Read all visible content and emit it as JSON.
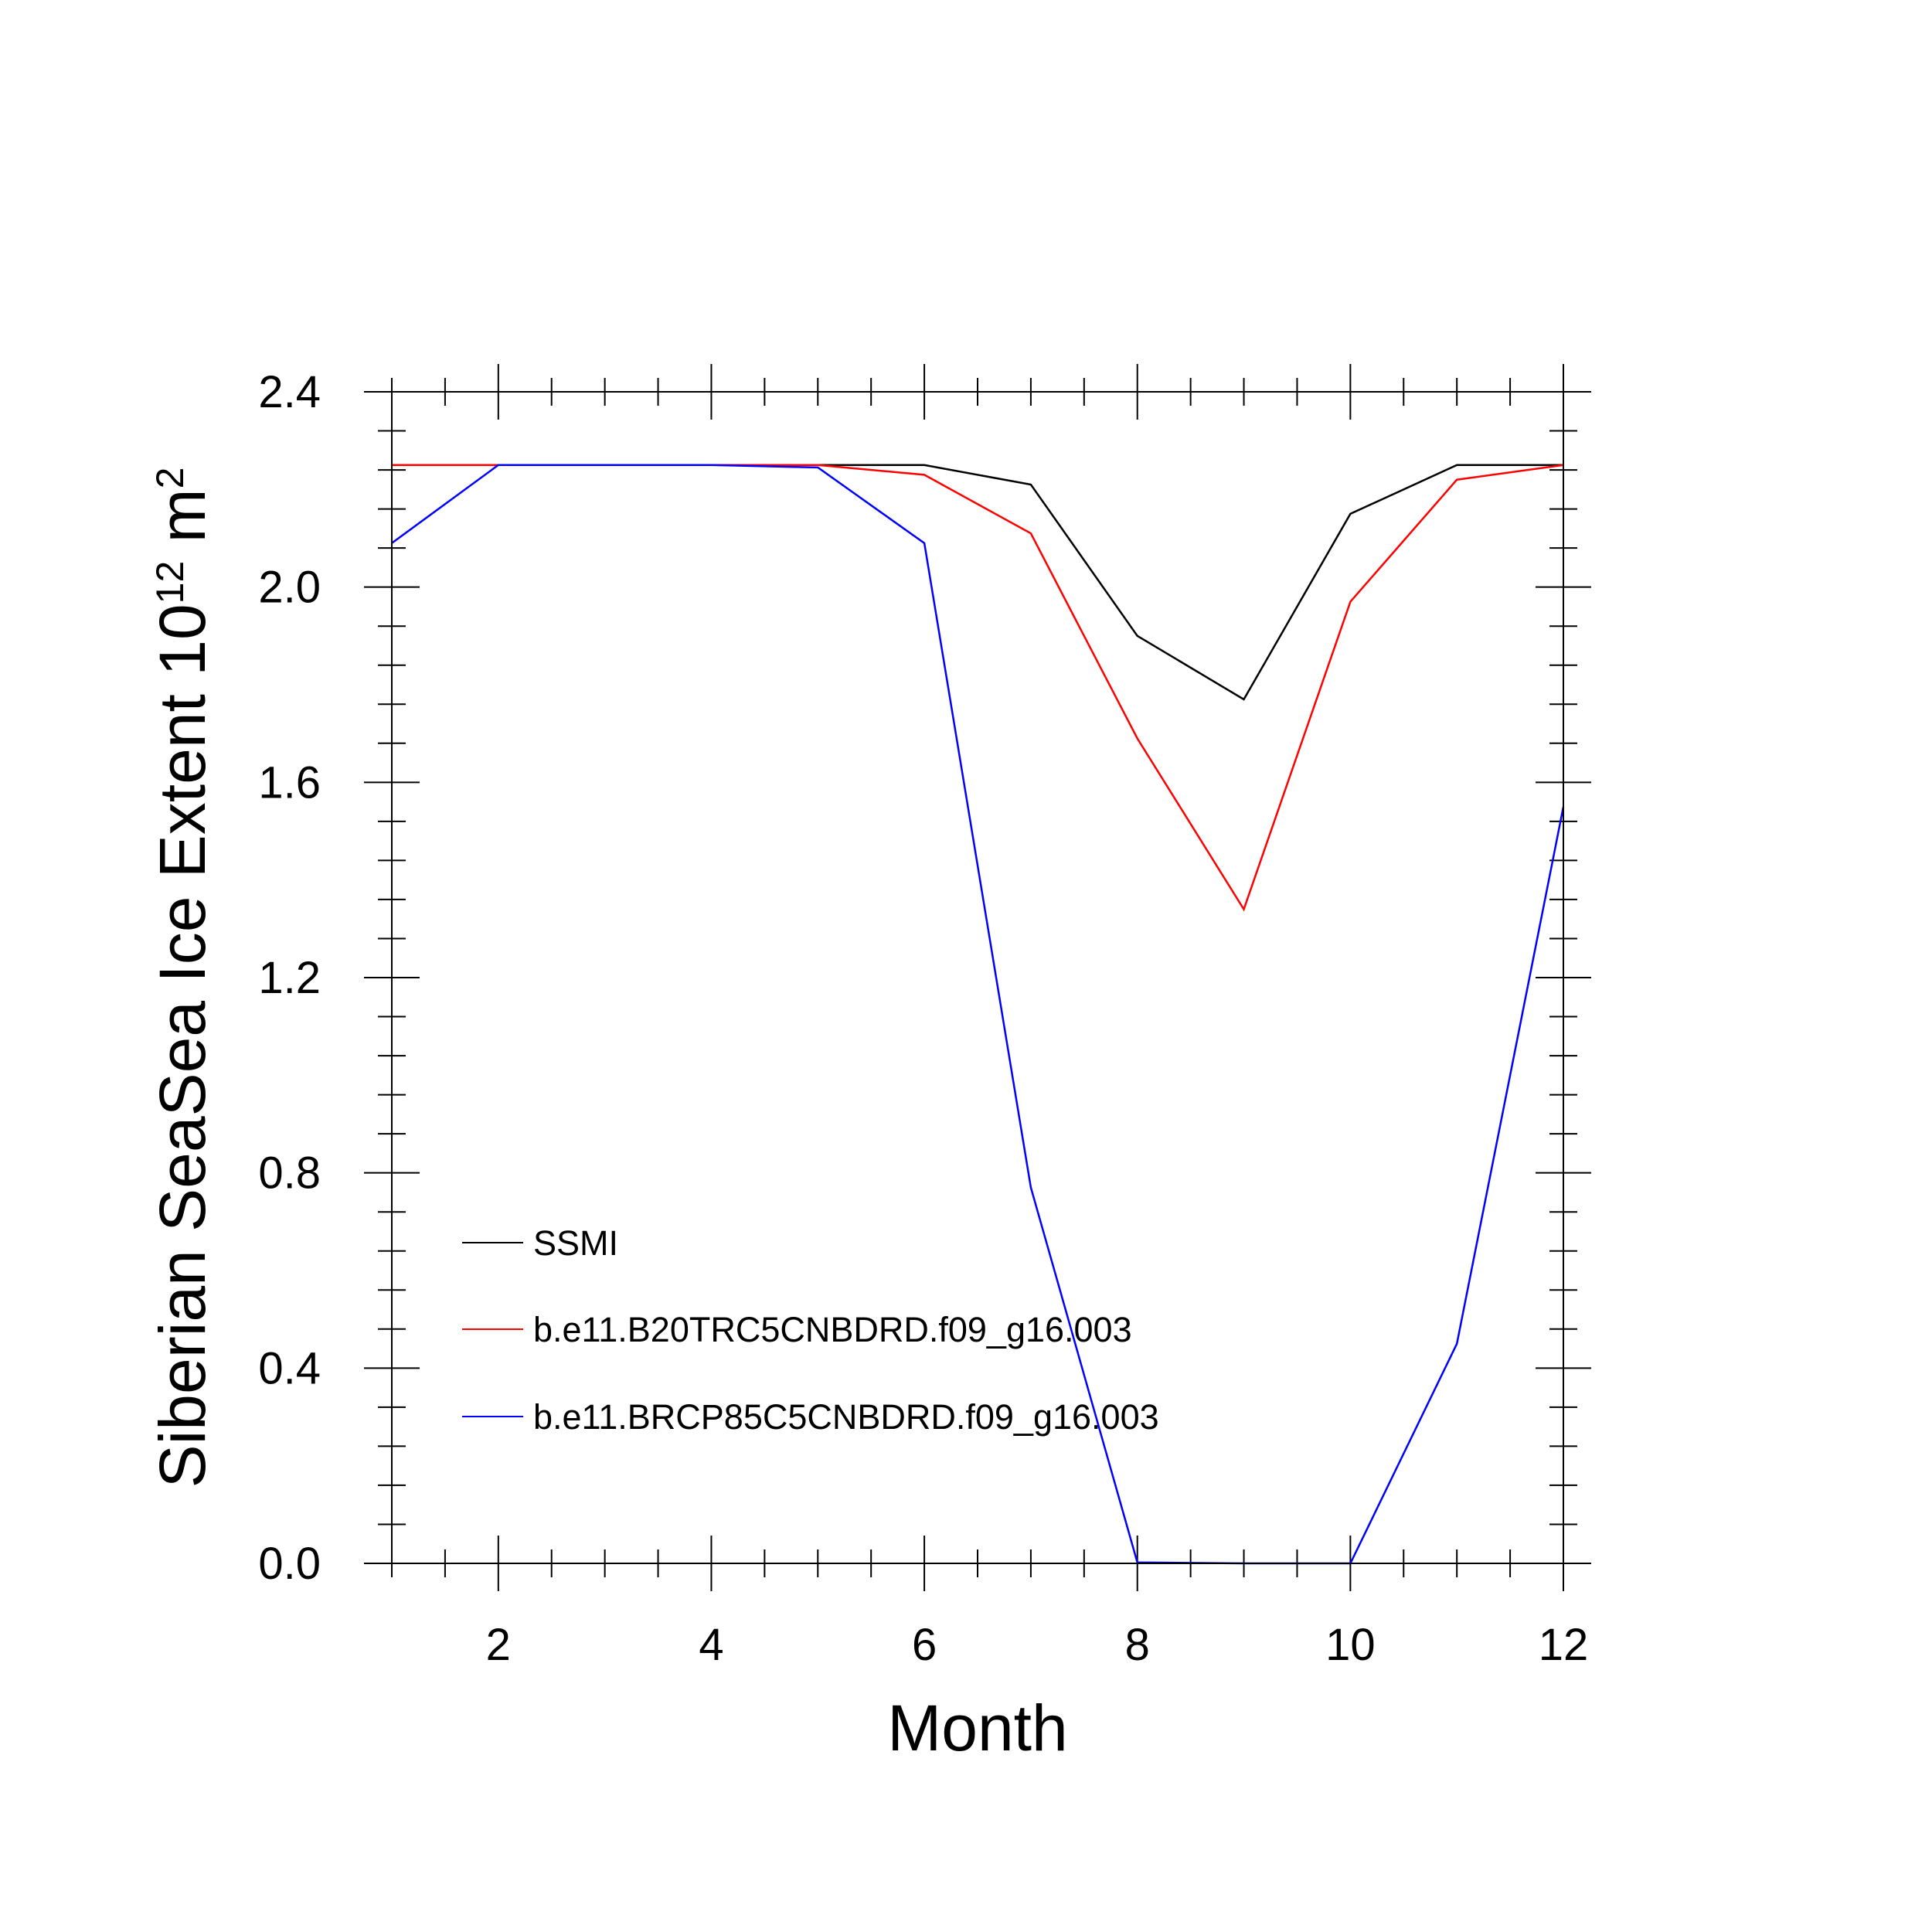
{
  "chart_data": {
    "type": "line",
    "xlabel": "Month",
    "ylabel": {
      "text": "Siberian SeaSea Ice Extent 10",
      "exponent": "12",
      "unit": " m",
      "unit_exponent": "2"
    },
    "xlim": [
      1,
      12
    ],
    "ylim": [
      0,
      2.4
    ],
    "xticks": [
      2,
      4,
      6,
      8,
      10,
      12
    ],
    "xtick_labels": [
      "2",
      "4",
      "6",
      "8",
      "10",
      "12"
    ],
    "yticks": [
      0,
      0.4,
      0.8,
      1.2,
      1.6,
      2.0,
      2.4
    ],
    "ytick_labels": [
      "0.0",
      "0.4",
      "0.8",
      "1.2",
      "1.6",
      "2.0",
      "2.4"
    ],
    "grid": false,
    "legend_position": "lower-left",
    "x": [
      1,
      2,
      3,
      4,
      5,
      6,
      7,
      8,
      9,
      10,
      11,
      12
    ],
    "series": [
      {
        "name": "SSMI",
        "color": "#000000",
        "values": [
          2.25,
          2.25,
          2.25,
          2.25,
          2.25,
          2.25,
          2.21,
          1.9,
          1.77,
          2.15,
          2.25,
          2.25
        ]
      },
      {
        "name": "b.e11.B20TRC5CNBDRD.f09_g16.003",
        "color": "#ff0000",
        "values": [
          2.25,
          2.25,
          2.25,
          2.25,
          2.25,
          2.23,
          2.11,
          1.69,
          1.34,
          1.97,
          2.22,
          2.25
        ]
      },
      {
        "name": "b.e11.BRCP85C5CNBDRD.f09_g16.003",
        "color": "#0000ff",
        "values": [
          2.09,
          2.25,
          2.25,
          2.25,
          2.245,
          2.09,
          0.77,
          0.002,
          0.0,
          0.0,
          0.45,
          1.55
        ]
      }
    ]
  }
}
